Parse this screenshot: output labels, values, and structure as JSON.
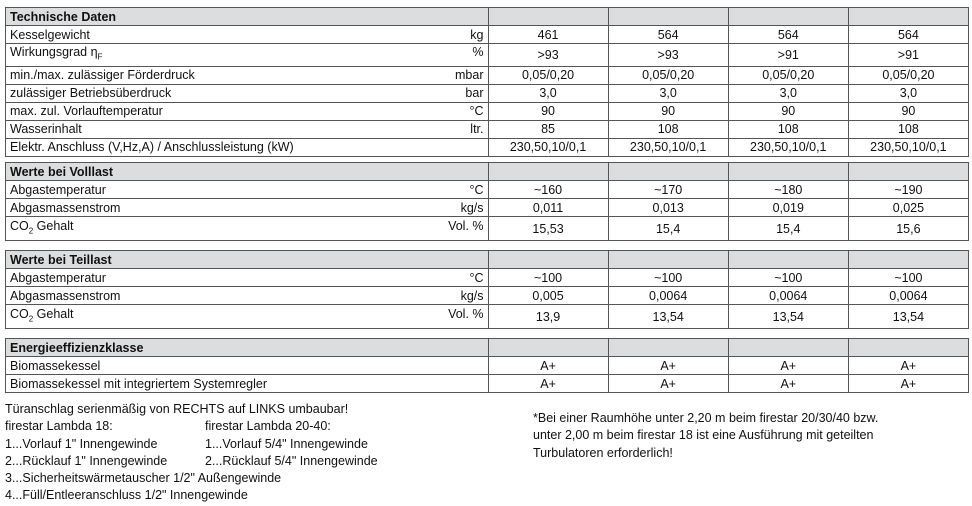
{
  "sections": [
    {
      "title": "Technische Daten",
      "rows": [
        {
          "label": "Kesselgewicht",
          "unit": "kg",
          "values": [
            "461",
            "564",
            "564",
            "564"
          ]
        },
        {
          "label": "Wirkungsgrad η",
          "sub": "F",
          "unit": "%",
          "values": [
            ">93",
            ">93",
            ">91",
            ">91"
          ]
        },
        {
          "label": "min./max. zulässiger Förderdruck",
          "unit": "mbar",
          "values": [
            "0,05/0,20",
            "0,05/0,20",
            "0,05/0,20",
            "0,05/0,20"
          ]
        },
        {
          "label": "zulässiger Betriebsüberdruck",
          "unit": "bar",
          "values": [
            "3,0",
            "3,0",
            "3,0",
            "3,0"
          ]
        },
        {
          "label": "max. zul. Vorlauftemperatur",
          "unit": "°C",
          "values": [
            "90",
            "90",
            "90",
            "90"
          ]
        },
        {
          "label": "Wasserinhalt",
          "unit": "ltr.",
          "values": [
            "85",
            "108",
            "108",
            "108"
          ]
        },
        {
          "label": "Elektr. Anschluss (V,Hz,A) / Anschlussleistung (kW)",
          "unit": "",
          "values": [
            "230,50,10/0,1",
            "230,50,10/0,1",
            "230,50,10/0,1",
            "230,50,10/0,1"
          ]
        }
      ]
    },
    {
      "title": "Werte bei Volllast",
      "rows": [
        {
          "label": "Abgastemperatur",
          "unit": "°C",
          "values": [
            "~160",
            "~170",
            "~180",
            "~190"
          ]
        },
        {
          "label": "Abgasmassenstrom",
          "unit": "kg/s",
          "values": [
            "0,011",
            "0,013",
            "0,019",
            "0,025"
          ]
        },
        {
          "label": "CO",
          "sub": "2",
          "label_rest": " Gehalt",
          "unit": "Vol. %",
          "values": [
            "15,53",
            "15,4",
            "15,4",
            "15,6"
          ],
          "tall": true
        }
      ]
    },
    {
      "title": "Werte bei Teillast",
      "rows": [
        {
          "label": "Abgastemperatur",
          "unit": "°C",
          "values": [
            "~100",
            "~100",
            "~100",
            "~100"
          ]
        },
        {
          "label": "Abgasmassenstrom",
          "unit": "kg/s",
          "values": [
            "0,005",
            "0,0064",
            "0,0064",
            "0,0064"
          ]
        },
        {
          "label": "CO",
          "sub": "2",
          "label_rest": " Gehalt",
          "unit": "Vol. %",
          "values": [
            "13,9",
            "13,54",
            "13,54",
            "13,54"
          ],
          "tall": true
        }
      ]
    },
    {
      "title": "Energieeffizienzklasse",
      "rows": [
        {
          "label": "Biomassekessel",
          "unit": "",
          "values": [
            "A+",
            "A+",
            "A+",
            "A+"
          ]
        },
        {
          "label": "Biomassekessel mit integriertem Systemregler",
          "unit": "",
          "values": [
            "A+",
            "A+",
            "A+",
            "A+"
          ]
        }
      ]
    }
  ],
  "notes": {
    "door": "Türanschlag serienmäßig von RECHTS auf LINKS umbaubar!",
    "col18_title": "firestar Lambda 18:",
    "col18": [
      "1...Vorlauf 1\" Innengewinde",
      "2...Rücklauf 1\" Innengewinde"
    ],
    "col2040_title": "firestar Lambda 20-40:",
    "col2040": [
      "1...Vorlauf 5/4\" Innengewinde",
      "2...Rücklauf 5/4\" Innengewinde"
    ],
    "common": [
      "3...Sicherheitswärmetauscher 1/2\" Außengewinde",
      "4...Füll/Entleeranschluss 1/2\" Innengewinde"
    ],
    "footnote": [
      "*Bei einer Raumhöhe unter 2,20 m beim firestar 20/30/40 bzw.",
      "unter 2,00 m beim firestar 18 ist eine Ausführung mit geteilten",
      "Turbulatoren erforderlich!"
    ]
  }
}
